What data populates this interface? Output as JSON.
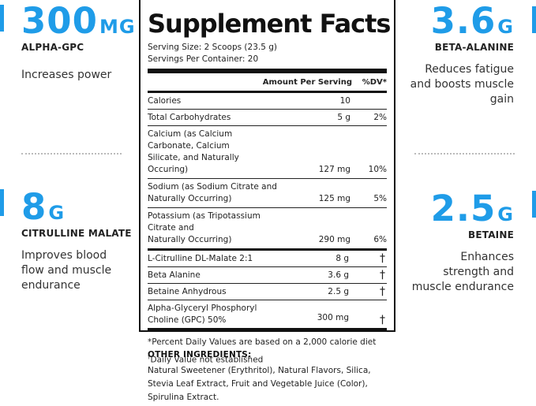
{
  "left_top": {
    "value": "300",
    "unit": "MG",
    "label": "ALPHA-GPC",
    "desc": "Increases power"
  },
  "left_bottom": {
    "value": "8",
    "unit": "G",
    "label": "CITRULLINE MALATE",
    "desc_lines": [
      "Improves blood",
      "flow and muscle",
      "endurance"
    ]
  },
  "right_top": {
    "value": "3.6",
    "unit": "G",
    "label": "BETA-ALANINE",
    "desc_lines": [
      "Reduces fatigue",
      "and boosts muscle",
      "gain"
    ]
  },
  "right_bottom": {
    "value": "2.5",
    "unit": "G",
    "label": "BETAINE",
    "desc_lines": [
      "Enhances",
      "strength and",
      "muscle endurance"
    ]
  },
  "facts": {
    "title": "Supplement Facts",
    "serving_size": "Serving Size: 2 Scoops (23.5 g)",
    "servings_per_container": "Servings Per Container: 20",
    "header_amount": "Amount Per Serving",
    "header_dv": "%DV*",
    "rows": [
      {
        "name": "Calories",
        "amount": "10",
        "dv": ""
      },
      {
        "name": "Total Carbohydrates",
        "amount": "5 g",
        "dv": "2%"
      },
      {
        "name_lines": [
          "Calcium (as Calcium Carbonate, Calcium",
          "Silicate, and Naturally Occuring)"
        ],
        "amount": "127 mg",
        "dv": "10%"
      },
      {
        "name_lines": [
          "Sodium (as Sodium Citrate and",
          "Naturally Occurring)"
        ],
        "amount": "125 mg",
        "dv": "5%"
      },
      {
        "name_lines": [
          "Potassium (as Tripotassium Citrate and",
          "Naturally Occurring)"
        ],
        "amount": "290 mg",
        "dv": "6%"
      },
      {
        "name": "L-Citrulline DL-Malate 2:1",
        "amount": "8 g",
        "dv": "†"
      },
      {
        "name": "Beta Alanine",
        "amount": "3.6 g",
        "dv": "†"
      },
      {
        "name": "Betaine Anhydrous",
        "amount": "2.5 g",
        "dv": "†"
      },
      {
        "name_lines": [
          "Alpha-Glyceryl Phosphoryl",
          "Choline (GPC) 50%"
        ],
        "amount": "300 mg",
        "dv": "†"
      }
    ],
    "footnote_dv": "*Percent Daily Values are based on a 2,000 calorie diet",
    "footnote_dagger_mark": "†",
    "footnote_dagger": "Daily Value not established"
  },
  "other_ingredients": {
    "title": "OTHER INGREDIENTS:",
    "lines": [
      "Natural Sweetener (Erythritol), Natural Flavors, Silica,",
      "Stevia Leaf Extract, Fruit and Vegetable Juice (Color),",
      "Spirulina Extract."
    ]
  },
  "colors": {
    "accent": "#1f9ce8"
  }
}
